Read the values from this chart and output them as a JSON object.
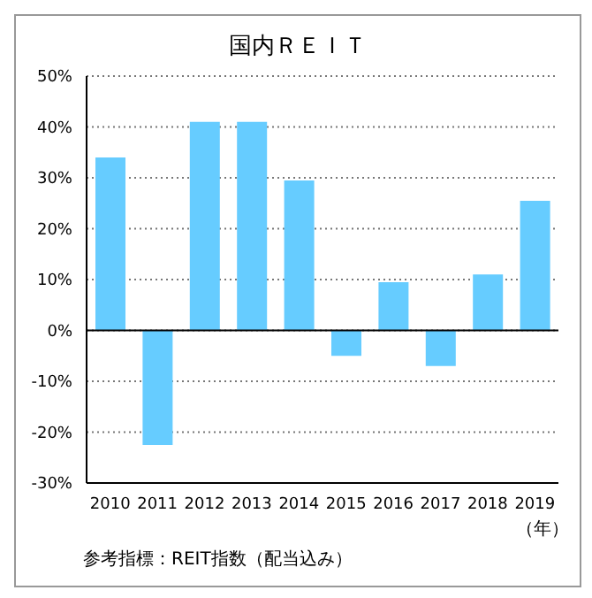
{
  "chart_data": {
    "type": "bar",
    "title": "国内ＲＥＩＴ",
    "xlabel": "（年）",
    "categories": [
      "2010",
      "2011",
      "2012",
      "2013",
      "2014",
      "2015",
      "2016",
      "2017",
      "2018",
      "2019"
    ],
    "values": [
      34,
      -22.5,
      41,
      41,
      29.5,
      -5,
      9.5,
      -7,
      11,
      25.5
    ],
    "color": "#66ccff",
    "ylim": [
      -30,
      50
    ],
    "yticks": [
      {
        "value": -30,
        "label": "-30%"
      },
      {
        "value": -20,
        "label": "-20%"
      },
      {
        "value": -10,
        "label": "-10%"
      },
      {
        "value": 0,
        "label": "0%"
      },
      {
        "value": 10,
        "label": "10%"
      },
      {
        "value": 20,
        "label": "20%"
      },
      {
        "value": 30,
        "label": "30%"
      },
      {
        "value": 40,
        "label": "40%"
      },
      {
        "value": 50,
        "label": "50%"
      }
    ],
    "grid": "y",
    "annotations": [
      "参考指標：REIT指数（配当込み）"
    ]
  }
}
